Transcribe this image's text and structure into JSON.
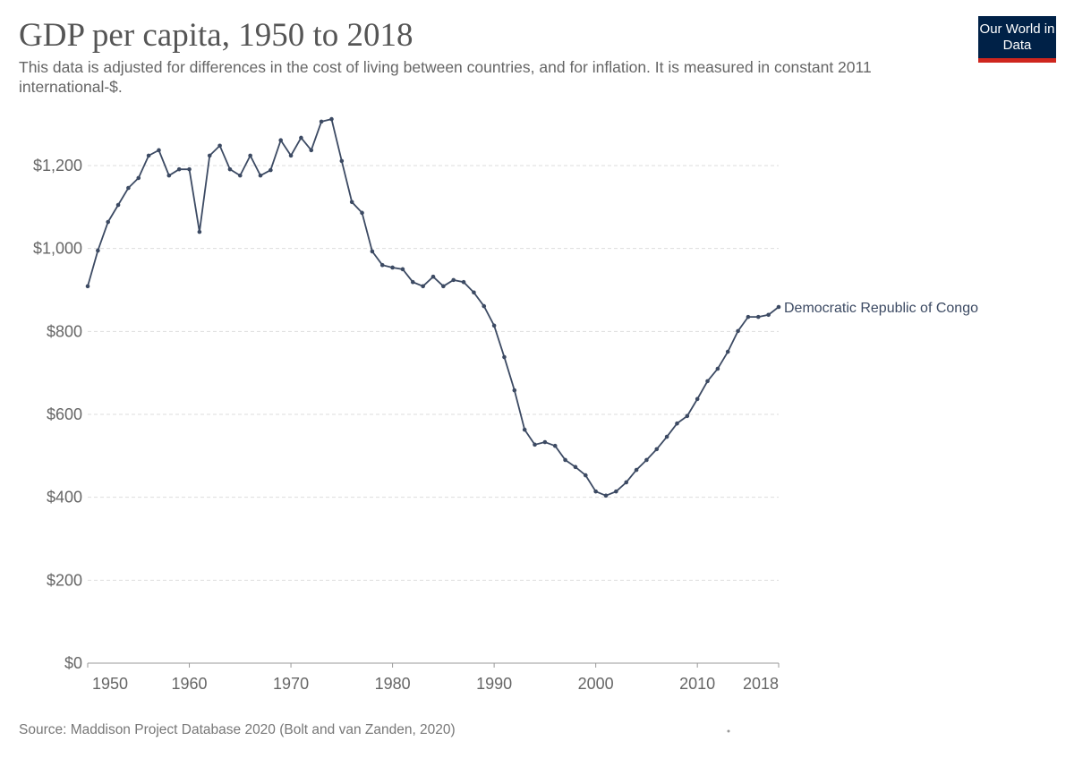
{
  "header": {
    "title": "GDP per capita, 1950 to 2018",
    "subtitle": "This data is adjusted for differences in the cost of living between countries, and for inflation. It is measured in constant 2011 international-$.",
    "logo_text": "Our World in Data"
  },
  "footer": {
    "source": "Source: Maddison Project Database 2020 (Bolt and van Zanden, 2020)"
  },
  "chart_data": {
    "type": "line",
    "title": "GDP per capita, 1950 to 2018",
    "xlabel": "",
    "ylabel": "",
    "xlim": [
      1950,
      2018
    ],
    "ylim": [
      0,
      1300
    ],
    "grid": "horizontal dashed",
    "x_ticks": [
      "1950",
      "1960",
      "1970",
      "1980",
      "1990",
      "2000",
      "2010",
      "2018"
    ],
    "y_ticks": [
      "$0",
      "$200",
      "$400",
      "$600",
      "$800",
      "$1,000",
      "$1,200"
    ],
    "line_color": "#3c4a63",
    "series": [
      {
        "name": "Democratic Republic of Congo",
        "x": [
          1950,
          1951,
          1952,
          1953,
          1954,
          1955,
          1956,
          1957,
          1958,
          1959,
          1960,
          1961,
          1962,
          1963,
          1964,
          1965,
          1966,
          1967,
          1968,
          1969,
          1970,
          1971,
          1972,
          1973,
          1974,
          1975,
          1976,
          1977,
          1978,
          1979,
          1980,
          1981,
          1982,
          1983,
          1984,
          1985,
          1986,
          1987,
          1988,
          1989,
          1990,
          1991,
          1992,
          1993,
          1994,
          1995,
          1996,
          1997,
          1998,
          1999,
          2000,
          2001,
          2002,
          2003,
          2004,
          2005,
          2006,
          2007,
          2008,
          2009,
          2010,
          2011,
          2012,
          2013,
          2014,
          2015,
          2016,
          2017,
          2018
        ],
        "values": [
          909,
          995,
          1064,
          1105,
          1146,
          1170,
          1224,
          1237,
          1176,
          1191,
          1191,
          1040,
          1224,
          1248,
          1191,
          1176,
          1224,
          1176,
          1189,
          1261,
          1224,
          1267,
          1237,
          1306,
          1312,
          1211,
          1112,
          1086,
          993,
          960,
          954,
          950,
          919,
          909,
          932,
          909,
          924,
          919,
          894,
          861,
          814,
          738,
          658,
          563,
          527,
          533,
          524,
          490,
          473,
          453,
          414,
          404,
          414,
          436,
          466,
          490,
          516,
          546,
          578,
          596,
          637,
          680,
          710,
          751,
          801,
          835,
          835,
          840,
          859
        ]
      }
    ]
  }
}
